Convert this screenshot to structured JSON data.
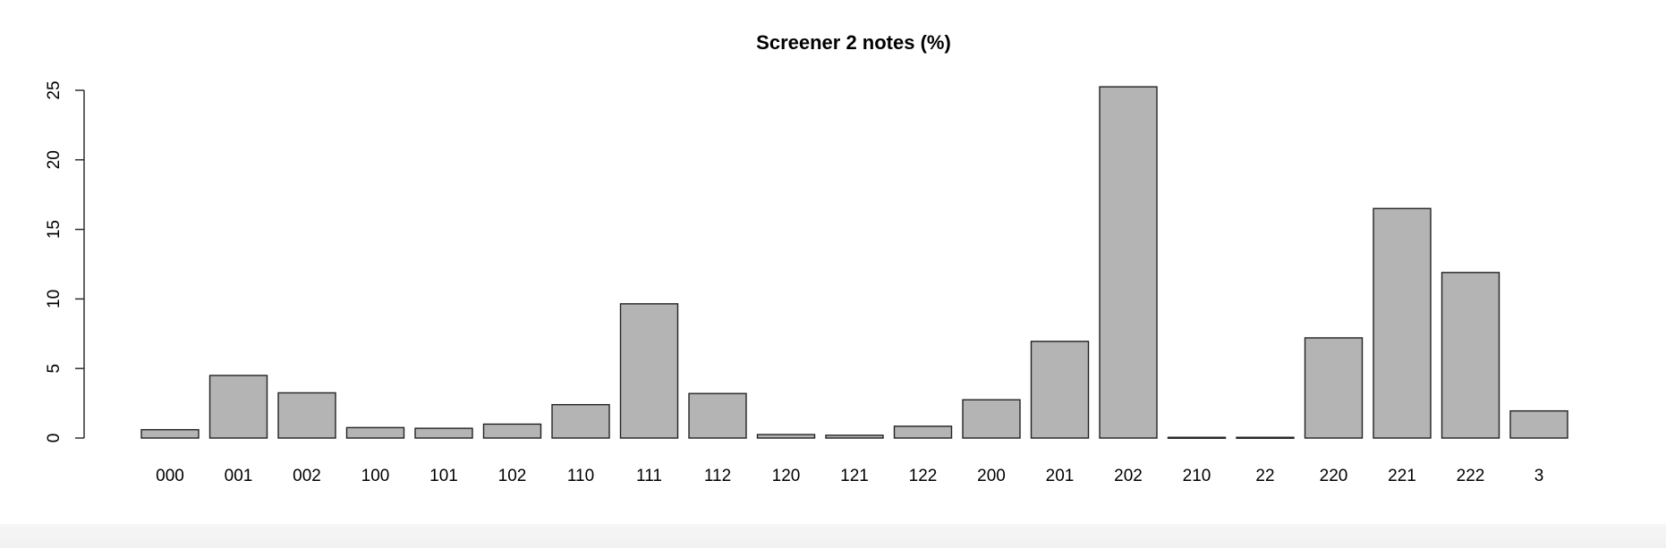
{
  "chart_data": {
    "type": "bar",
    "title": "Screener 2 notes (%)",
    "xlabel": "",
    "ylabel": "",
    "categories": [
      "000",
      "001",
      "002",
      "100",
      "101",
      "102",
      "110",
      "111",
      "112",
      "120",
      "121",
      "122",
      "200",
      "201",
      "202",
      "210",
      "22",
      "220",
      "221",
      "222",
      "3"
    ],
    "values": [
      0.6,
      4.5,
      3.25,
      0.75,
      0.7,
      1.0,
      2.4,
      9.65,
      3.2,
      0.25,
      0.2,
      0.85,
      2.75,
      6.95,
      25.25,
      0.05,
      0.05,
      7.2,
      16.5,
      11.9,
      1.95
    ],
    "ylim": [
      0,
      25
    ],
    "yticks": [
      "0",
      "5",
      "10",
      "15",
      "20",
      "25"
    ],
    "grid": false,
    "legend": "none",
    "bar_color": "#b4b4b4",
    "border_color": "#222222"
  }
}
